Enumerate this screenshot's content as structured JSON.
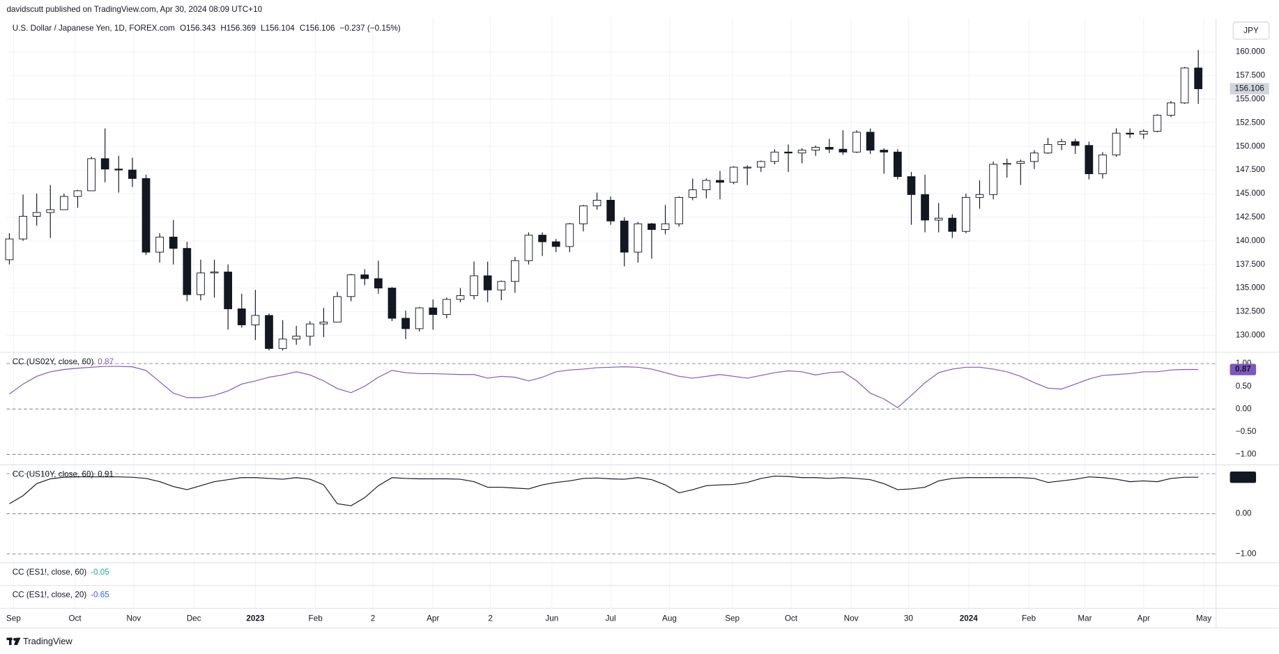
{
  "header": {
    "publisher": "davidscutt published on TradingView.com, Apr 30, 2024 08:09 UTC+10",
    "footer": "TradingView"
  },
  "chart_data": [
    {
      "type": "candlestick",
      "title": "U.S. Dollar / Japanese Yen, 1D, FOREX.com",
      "stats": [
        "O156.343",
        "H156.369",
        "L156.104",
        "C156.106",
        "−0.237 (−0.15%)"
      ],
      "currency": "JPY",
      "last_price": {
        "value": 156.106,
        "label": "156.106"
      },
      "up_color": "#ffffff",
      "down_color": "#131722",
      "grid": true,
      "xlim": [
        -0.2,
        88.3
      ],
      "xticks": [
        {
          "value": 0.3,
          "label": "Sep"
        },
        {
          "value": 4.8,
          "label": "Oct"
        },
        {
          "value": 9.1,
          "label": "Nov"
        },
        {
          "value": 13.5,
          "label": "Dec"
        },
        {
          "value": 18.0,
          "label": "2023"
        },
        {
          "value": 22.4,
          "label": "Feb"
        },
        {
          "value": 26.6,
          "label": "2"
        },
        {
          "value": 31.0,
          "label": "Apr"
        },
        {
          "value": 35.2,
          "label": "2"
        },
        {
          "value": 39.7,
          "label": "Jun"
        },
        {
          "value": 44.0,
          "label": "Jul"
        },
        {
          "value": 48.3,
          "label": "Aug"
        },
        {
          "value": 52.9,
          "label": "Sep"
        },
        {
          "value": 57.2,
          "label": "Oct"
        },
        {
          "value": 61.6,
          "label": "Nov"
        },
        {
          "value": 65.8,
          "label": "30"
        },
        {
          "value": 70.2,
          "label": "2024"
        },
        {
          "value": 74.6,
          "label": "Feb"
        },
        {
          "value": 78.7,
          "label": "Mar"
        },
        {
          "value": 83.0,
          "label": "Apr"
        },
        {
          "value": 87.4,
          "label": "May"
        }
      ],
      "ylim": [
        128.2,
        163.6
      ],
      "yticks": [
        {
          "value": 130,
          "label": "130.000"
        },
        {
          "value": 132.5,
          "label": "132.500"
        },
        {
          "value": 135,
          "label": "135.000"
        },
        {
          "value": 137.5,
          "label": "137.500"
        },
        {
          "value": 140,
          "label": "140.000"
        },
        {
          "value": 142.5,
          "label": "142.500"
        },
        {
          "value": 145,
          "label": "145.000"
        },
        {
          "value": 147.5,
          "label": "147.500"
        },
        {
          "value": 150,
          "label": "150.000"
        },
        {
          "value": 152.5,
          "label": "152.500"
        },
        {
          "value": 155,
          "label": "155.000"
        },
        {
          "value": 157.5,
          "label": "157.500"
        },
        {
          "value": 160,
          "label": "160.000"
        }
      ],
      "open": [
        138.0,
        140.2,
        142.6,
        143.0,
        143.3,
        144.7,
        145.3,
        148.7,
        147.6,
        147.5,
        146.6,
        138.8,
        140.4,
        139.2,
        134.3,
        136.6,
        136.7,
        132.8,
        131.1,
        132.1,
        128.6,
        129.6,
        129.9,
        131.2,
        131.4,
        134.1,
        136.4,
        136.0,
        135.0,
        131.8,
        130.7,
        132.9,
        132.2,
        133.8,
        134.2,
        136.3,
        134.8,
        135.7,
        137.9,
        140.6,
        139.9,
        139.4,
        141.8,
        143.7,
        144.3,
        142.1,
        138.8,
        141.8,
        141.2,
        141.8,
        144.6,
        145.4,
        146.4,
        146.2,
        147.8,
        147.8,
        148.4,
        149.4,
        149.3,
        149.6,
        149.9,
        149.7,
        149.4,
        151.5,
        149.6,
        149.4,
        146.8,
        144.9,
        142.2,
        142.4,
        141.0,
        144.6,
        144.9,
        148.1,
        148.2,
        148.4,
        149.3,
        150.2,
        150.5,
        150.1,
        147.1,
        149.1,
        151.4,
        151.3,
        151.6,
        153.3,
        154.6,
        158.3
      ],
      "high": [
        140.8,
        144.9,
        145.0,
        145.9,
        145.0,
        145.4,
        148.9,
        151.9,
        149.0,
        148.8,
        147.0,
        140.8,
        142.2,
        139.9,
        138.0,
        138.0,
        137.5,
        134.4,
        134.8,
        132.3,
        131.6,
        131.0,
        131.5,
        132.9,
        134.6,
        136.5,
        137.0,
        137.9,
        135.1,
        132.6,
        133.0,
        133.8,
        134.0,
        135.0,
        137.8,
        137.8,
        135.8,
        138.3,
        140.9,
        140.9,
        140.2,
        141.9,
        143.8,
        145.1,
        144.7,
        142.5,
        142.0,
        141.9,
        143.8,
        144.7,
        146.6,
        146.6,
        147.4,
        147.9,
        148.0,
        148.5,
        149.7,
        150.2,
        149.8,
        150.1,
        150.8,
        151.7,
        151.7,
        151.9,
        149.8,
        149.7,
        147.3,
        147.0,
        144.0,
        142.8,
        145.0,
        146.4,
        148.4,
        148.7,
        148.6,
        149.6,
        150.9,
        150.8,
        150.8,
        150.5,
        149.4,
        151.9,
        151.9,
        151.8,
        153.4,
        154.8,
        158.4,
        160.2
      ],
      "low": [
        137.5,
        140.0,
        141.6,
        140.3,
        143.3,
        143.5,
        145.3,
        146.2,
        145.1,
        145.7,
        138.5,
        137.7,
        137.5,
        133.6,
        133.7,
        134.0,
        130.6,
        130.8,
        129.5,
        128.4,
        128.4,
        129.0,
        128.9,
        129.8,
        131.4,
        133.6,
        135.3,
        134.4,
        131.5,
        129.6,
        130.4,
        130.6,
        131.8,
        133.5,
        133.8,
        133.5,
        133.7,
        134.5,
        137.5,
        138.4,
        138.8,
        138.8,
        141.0,
        143.3,
        141.7,
        137.3,
        137.7,
        138.1,
        140.7,
        141.5,
        144.3,
        144.5,
        144.4,
        146.0,
        145.9,
        147.3,
        148.1,
        147.3,
        148.2,
        149.0,
        149.3,
        149.1,
        149.3,
        149.2,
        147.1,
        146.5,
        141.7,
        140.9,
        140.9,
        140.3,
        140.8,
        143.4,
        144.4,
        146.7,
        145.9,
        147.6,
        149.2,
        149.6,
        149.2,
        146.5,
        146.6,
        148.9,
        150.9,
        150.8,
        151.5,
        153.1,
        154.5,
        154.5
      ],
      "close": [
        140.2,
        142.6,
        143.0,
        143.3,
        144.7,
        145.3,
        148.7,
        147.6,
        147.5,
        146.6,
        138.8,
        140.4,
        139.2,
        134.3,
        136.6,
        136.7,
        132.8,
        131.1,
        132.1,
        128.6,
        129.6,
        129.9,
        131.2,
        131.4,
        134.1,
        136.4,
        136.0,
        135.0,
        131.8,
        130.7,
        132.9,
        132.2,
        133.8,
        134.2,
        136.3,
        134.8,
        135.7,
        137.9,
        140.6,
        139.9,
        139.4,
        141.8,
        143.7,
        144.3,
        142.1,
        138.8,
        141.8,
        141.2,
        141.8,
        144.6,
        145.4,
        146.4,
        146.2,
        147.8,
        147.8,
        148.4,
        149.4,
        149.3,
        149.6,
        149.9,
        149.7,
        149.4,
        151.5,
        149.6,
        149.4,
        146.8,
        144.9,
        142.2,
        142.4,
        141.0,
        144.6,
        144.9,
        148.1,
        148.2,
        148.4,
        149.3,
        150.2,
        150.5,
        150.1,
        147.1,
        149.1,
        151.4,
        151.3,
        151.6,
        153.3,
        154.6,
        158.3,
        156.1
      ]
    },
    {
      "type": "line",
      "title": "CC (US02Y, close, 60)",
      "last_value": 0.87,
      "color": "#7e57c2",
      "ylim": [
        -1.23,
        1.25
      ],
      "yticks": [
        {
          "value": 1,
          "label": "1.00"
        },
        {
          "value": 0.5,
          "label": "0.50"
        },
        {
          "value": 0,
          "label": "0.00"
        },
        {
          "value": -0.5,
          "label": "−0.50"
        },
        {
          "value": -1,
          "label": "−1.00"
        }
      ],
      "levels": [
        1,
        0,
        -1
      ],
      "values": [
        0.33,
        0.55,
        0.72,
        0.82,
        0.87,
        0.9,
        0.92,
        0.94,
        0.94,
        0.93,
        0.85,
        0.6,
        0.35,
        0.25,
        0.25,
        0.3,
        0.4,
        0.55,
        0.62,
        0.7,
        0.75,
        0.82,
        0.75,
        0.62,
        0.45,
        0.36,
        0.5,
        0.7,
        0.85,
        0.8,
        0.78,
        0.78,
        0.77,
        0.76,
        0.76,
        0.68,
        0.72,
        0.7,
        0.62,
        0.7,
        0.82,
        0.86,
        0.88,
        0.91,
        0.92,
        0.93,
        0.92,
        0.88,
        0.8,
        0.72,
        0.68,
        0.72,
        0.76,
        0.72,
        0.68,
        0.74,
        0.8,
        0.84,
        0.82,
        0.75,
        0.8,
        0.82,
        0.62,
        0.35,
        0.22,
        0.03,
        0.3,
        0.58,
        0.8,
        0.88,
        0.92,
        0.92,
        0.88,
        0.82,
        0.72,
        0.58,
        0.46,
        0.44,
        0.55,
        0.66,
        0.74,
        0.76,
        0.78,
        0.82,
        0.82,
        0.86,
        0.87,
        0.87
      ]
    },
    {
      "type": "line",
      "title": "CC (US10Y, close, 60)",
      "last_value": 0.91,
      "color": "#131722",
      "ylim": [
        -1.22,
        1.22
      ],
      "yticks": [
        {
          "value": 0,
          "label": "0.00"
        },
        {
          "value": -1,
          "label": "−1.00"
        }
      ],
      "levels": [
        1,
        0,
        -1
      ],
      "values": [
        0.25,
        0.45,
        0.75,
        0.87,
        0.91,
        0.92,
        0.92,
        0.92,
        0.92,
        0.91,
        0.88,
        0.8,
        0.68,
        0.6,
        0.7,
        0.8,
        0.85,
        0.9,
        0.9,
        0.88,
        0.86,
        0.9,
        0.86,
        0.72,
        0.25,
        0.2,
        0.4,
        0.7,
        0.9,
        0.88,
        0.87,
        0.87,
        0.87,
        0.86,
        0.8,
        0.66,
        0.66,
        0.64,
        0.62,
        0.72,
        0.78,
        0.82,
        0.88,
        0.89,
        0.87,
        0.86,
        0.9,
        0.85,
        0.72,
        0.52,
        0.6,
        0.7,
        0.72,
        0.73,
        0.78,
        0.88,
        0.94,
        0.93,
        0.9,
        0.9,
        0.88,
        0.9,
        0.88,
        0.85,
        0.75,
        0.6,
        0.62,
        0.66,
        0.82,
        0.88,
        0.9,
        0.9,
        0.9,
        0.9,
        0.9,
        0.88,
        0.78,
        0.82,
        0.86,
        0.92,
        0.9,
        0.86,
        0.8,
        0.82,
        0.8,
        0.88,
        0.91,
        0.91
      ]
    },
    {
      "type": "indicator",
      "title": "CC (ES1!, close, 60)",
      "last_value": -0.05,
      "value_color": "#22ab94"
    },
    {
      "type": "indicator",
      "title": "CC (ES1!, close, 20)",
      "last_value": -0.65,
      "value_color": "#2962ff"
    }
  ]
}
